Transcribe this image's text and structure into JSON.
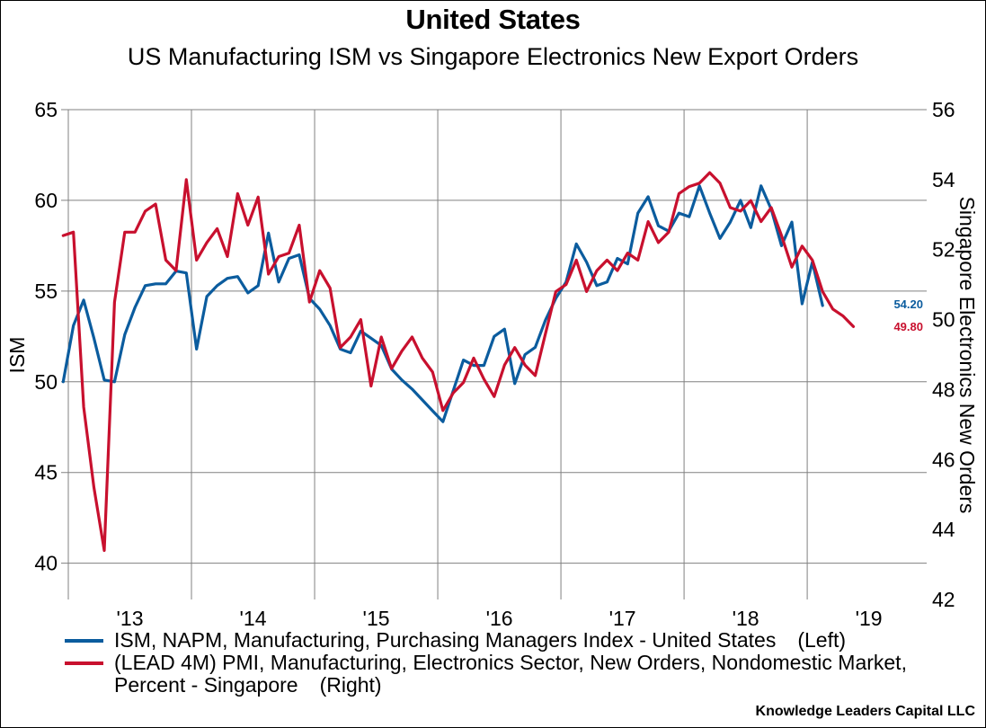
{
  "title": "United States",
  "subtitle": "US Manufacturing ISM vs Singapore Electronics New Export Orders",
  "source": "Knowledge Leaders Capital LLC",
  "colors": {
    "ism": "#0b5c9e",
    "singapore": "#c8102e",
    "grid": "#808080"
  },
  "chart_data": {
    "type": "line",
    "title": "United States",
    "subtitle": "US Manufacturing ISM vs Singapore Electronics New Export Orders",
    "xlabel": "",
    "ylabel_left": "ISM",
    "ylabel_right": "Singapore Electronics New Orders",
    "xlim": [
      2013.0,
      2019.97
    ],
    "ylim_left": [
      38.0,
      65
    ],
    "ylim_right": [
      42,
      56
    ],
    "yticks_left": [
      40,
      45,
      50,
      55,
      60,
      65
    ],
    "yticks_right": [
      42,
      44,
      46,
      48,
      50,
      52,
      54,
      56
    ],
    "xticks": [
      {
        "label": "'13",
        "year": 2013
      },
      {
        "label": "'14",
        "year": 2014
      },
      {
        "label": "'15",
        "year": 2015
      },
      {
        "label": "'16",
        "year": 2016
      },
      {
        "label": "'17",
        "year": 2017
      },
      {
        "label": "'18",
        "year": 2018
      },
      {
        "label": "'19",
        "year": 2019
      }
    ],
    "grid": true,
    "legend_position": "bottom",
    "series": [
      {
        "name": "ISM, NAPM, Manufacturing, Purchasing Managers Index - United States",
        "axis_tag": "(Left)",
        "axis": "left",
        "start": "2012-12",
        "last_value_label": "54.20",
        "values": [
          50.0,
          53.1,
          54.5,
          52.4,
          50.1,
          50.0,
          52.6,
          54.1,
          55.3,
          55.4,
          55.4,
          56.1,
          56.0,
          51.8,
          54.7,
          55.3,
          55.7,
          55.8,
          54.9,
          55.3,
          58.2,
          55.5,
          56.8,
          57.0,
          54.6,
          54.0,
          53.1,
          51.8,
          51.6,
          52.8,
          52.4,
          52.0,
          50.7,
          50.1,
          49.6,
          49.0,
          48.4,
          47.8,
          49.5,
          51.2,
          50.9,
          50.9,
          52.5,
          52.9,
          49.9,
          51.5,
          51.9,
          53.4,
          54.6,
          55.5,
          57.6,
          56.6,
          55.3,
          55.5,
          56.8,
          56.5,
          59.3,
          60.2,
          58.6,
          58.3,
          59.3,
          59.1,
          60.8,
          59.3,
          57.9,
          58.8,
          60.0,
          58.5,
          60.8,
          59.5,
          57.5,
          58.8,
          54.3,
          56.6,
          54.2
        ]
      },
      {
        "name": "(LEAD 4M) PMI, Manufacturing, Electronics Sector, New Orders, Nondomestic Market, Percent - Singapore",
        "axis_tag": "(Right)",
        "axis": "right",
        "start": "2012-12",
        "last_value_label": "49.80",
        "values": [
          52.4,
          52.5,
          47.5,
          45.2,
          43.4,
          50.5,
          52.5,
          52.5,
          53.1,
          53.3,
          51.7,
          51.4,
          54.0,
          51.7,
          52.2,
          52.6,
          51.8,
          53.6,
          52.7,
          53.5,
          51.3,
          51.8,
          51.9,
          52.7,
          50.5,
          51.4,
          50.9,
          49.2,
          49.5,
          50.0,
          48.1,
          49.5,
          48.6,
          49.1,
          49.5,
          48.9,
          48.5,
          47.4,
          47.9,
          48.2,
          48.9,
          48.3,
          47.8,
          48.7,
          49.2,
          48.7,
          48.4,
          49.6,
          50.8,
          51.0,
          51.7,
          50.8,
          51.4,
          51.7,
          51.4,
          51.9,
          51.7,
          52.8,
          52.2,
          52.5,
          53.6,
          53.8,
          53.9,
          54.2,
          53.9,
          53.2,
          53.1,
          53.4,
          52.8,
          53.2,
          52.4,
          51.5,
          52.1,
          51.7,
          50.8,
          50.3,
          50.1,
          49.8
        ]
      }
    ]
  }
}
